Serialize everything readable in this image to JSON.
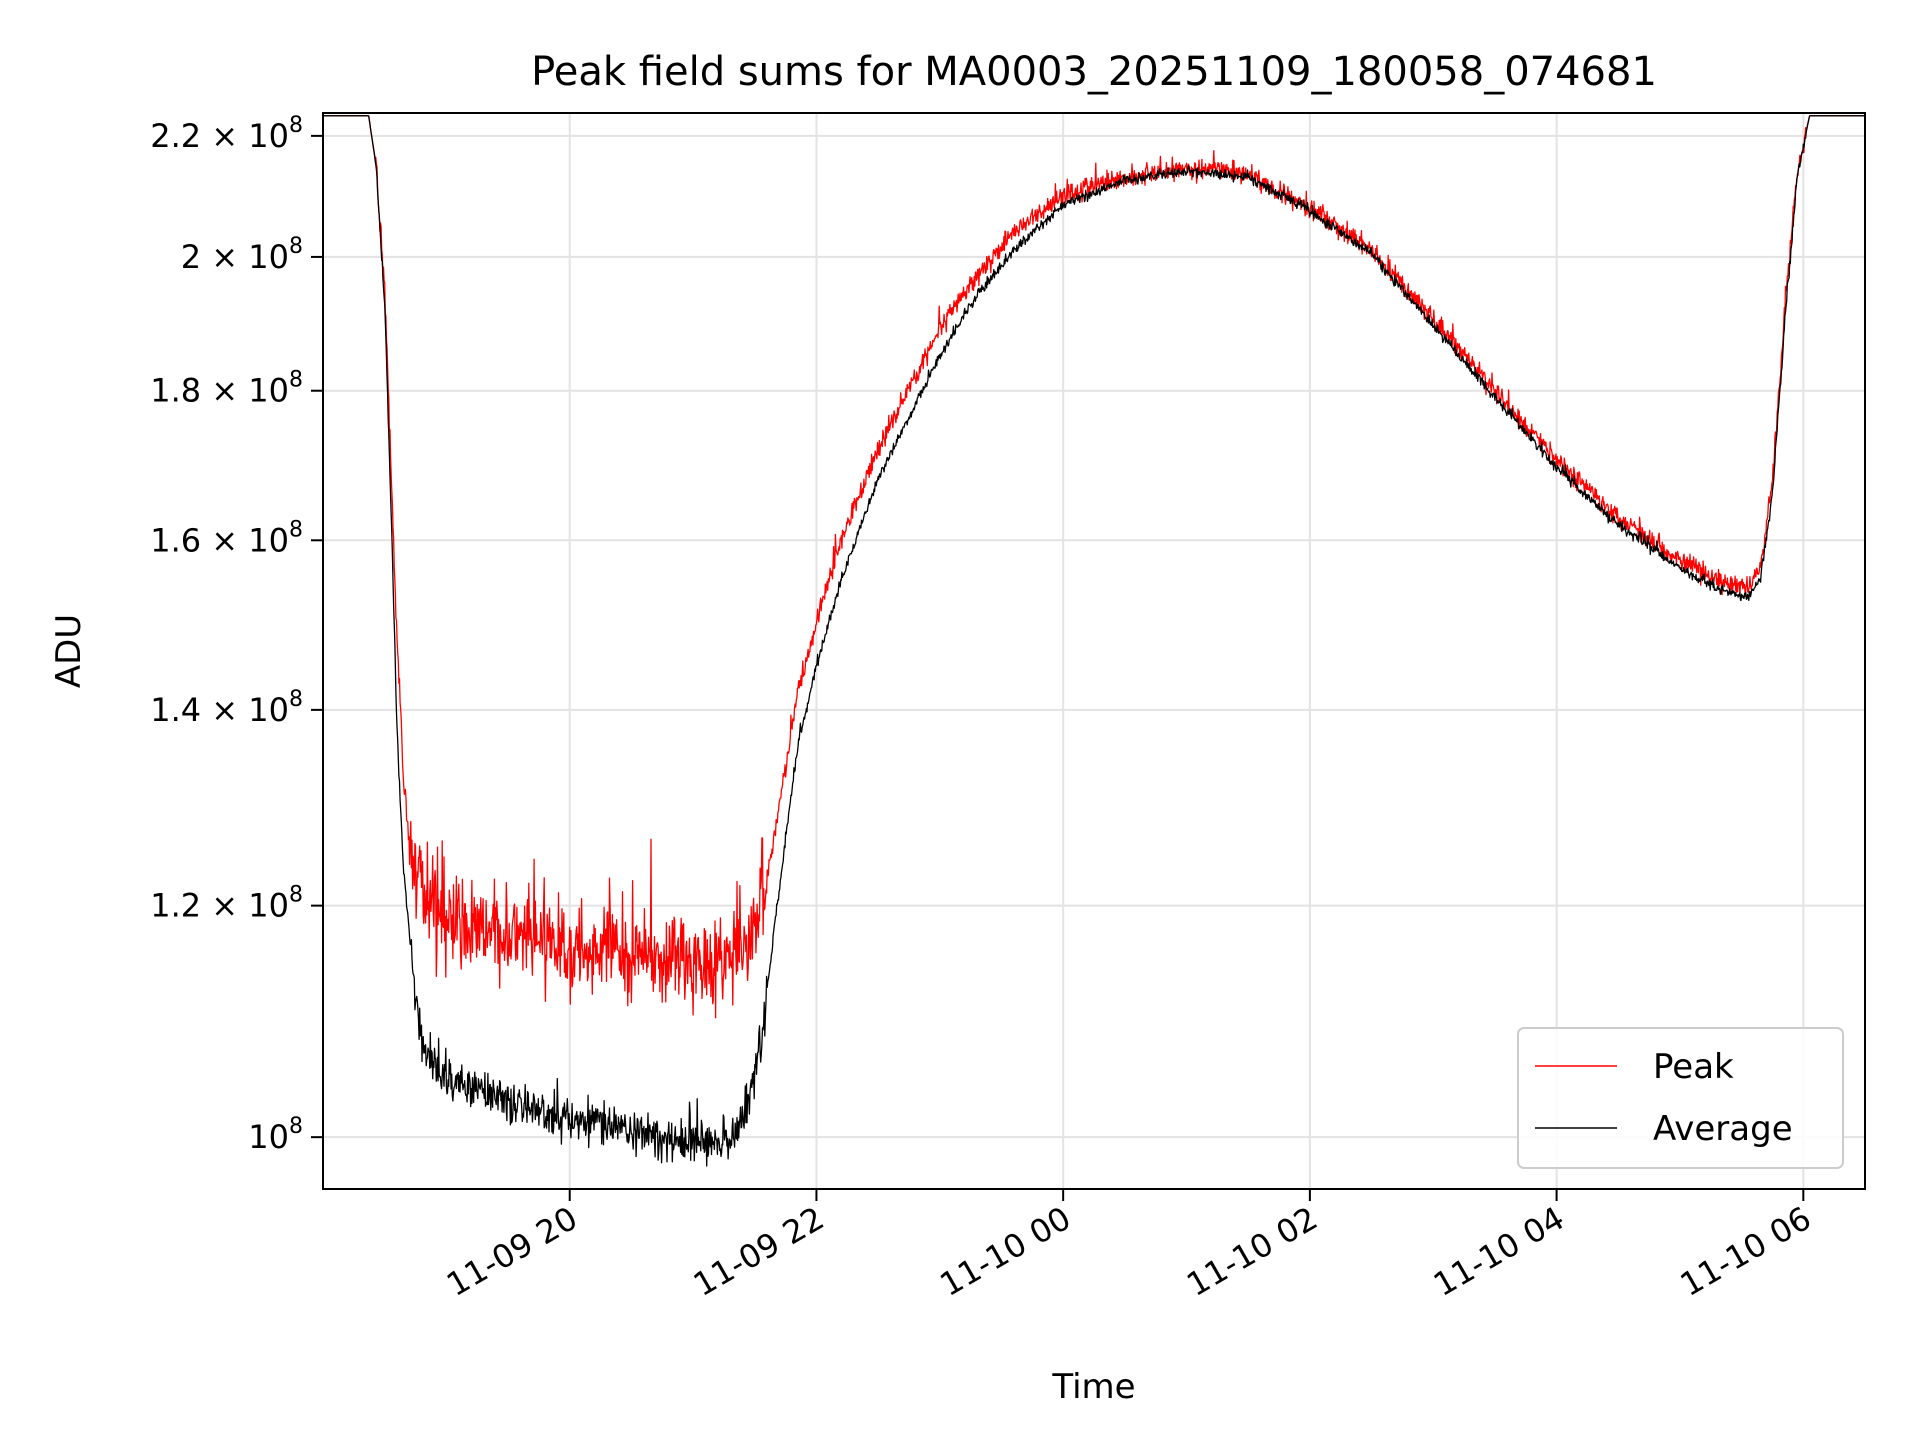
{
  "chart_data": {
    "type": "line",
    "title": "Peak field sums for MA0003_20251109_180058_074681",
    "xlabel": "Time",
    "ylabel": "ADU",
    "yscale": "log",
    "ylim": [
      96000000,
      224000000
    ],
    "xlim_hours": [
      18.0,
      30.5
    ],
    "grid": true,
    "legend_position": "lower-right",
    "x_ticks": [
      {
        "hours": 20,
        "label": "11-09 20"
      },
      {
        "hours": 22,
        "label": "11-09 22"
      },
      {
        "hours": 24,
        "label": "11-10 00"
      },
      {
        "hours": 26,
        "label": "11-10 02"
      },
      {
        "hours": 28,
        "label": "11-10 04"
      },
      {
        "hours": 30,
        "label": "11-10 06"
      }
    ],
    "y_ticks": [
      {
        "value": 100000000,
        "mantissa": "",
        "exponent": "8"
      },
      {
        "value": 120000000,
        "mantissa": "1.2",
        "exponent": "8"
      },
      {
        "value": 140000000,
        "mantissa": "1.4",
        "exponent": "8"
      },
      {
        "value": 160000000,
        "mantissa": "1.6",
        "exponent": "8"
      },
      {
        "value": 180000000,
        "mantissa": "1.8",
        "exponent": "8"
      },
      {
        "value": 200000000,
        "mantissa": "2",
        "exponent": "8"
      },
      {
        "value": 220000000,
        "mantissa": "2.2",
        "exponent": "8"
      }
    ],
    "times_label": "×",
    "tick_base": "10",
    "series": [
      {
        "name": "Peak",
        "color": "#ff0000",
        "noise_low_region": 0.035,
        "noise_default": 0.008,
        "points": [
          [
            18.0,
            223500000
          ],
          [
            18.37,
            223500000
          ],
          [
            18.43,
            215000000
          ],
          [
            18.5,
            195000000
          ],
          [
            18.55,
            170000000
          ],
          [
            18.6,
            148000000
          ],
          [
            18.65,
            133000000
          ],
          [
            18.7,
            126000000
          ],
          [
            18.8,
            122000000
          ],
          [
            19.0,
            118500000
          ],
          [
            19.5,
            117000000
          ],
          [
            20.0,
            116000000
          ],
          [
            20.5,
            115500000
          ],
          [
            21.0,
            115000000
          ],
          [
            21.3,
            115000000
          ],
          [
            21.45,
            116500000
          ],
          [
            21.55,
            120000000
          ],
          [
            21.65,
            126000000
          ],
          [
            21.75,
            134000000
          ],
          [
            21.85,
            142000000
          ],
          [
            22.0,
            150000000
          ],
          [
            22.2,
            160000000
          ],
          [
            22.5,
            172000000
          ],
          [
            22.8,
            182000000
          ],
          [
            23.0,
            189000000
          ],
          [
            23.3,
            197000000
          ],
          [
            23.6,
            204000000
          ],
          [
            24.0,
            210000000
          ],
          [
            24.5,
            213000000
          ],
          [
            25.0,
            214500000
          ],
          [
            25.5,
            213500000
          ],
          [
            26.0,
            208000000
          ],
          [
            26.5,
            201000000
          ],
          [
            27.0,
            190500000
          ],
          [
            27.5,
            180000000
          ],
          [
            28.0,
            170500000
          ],
          [
            28.5,
            163000000
          ],
          [
            29.0,
            157500000
          ],
          [
            29.3,
            155000000
          ],
          [
            29.55,
            154000000
          ],
          [
            29.65,
            156500000
          ],
          [
            29.75,
            168000000
          ],
          [
            29.85,
            192000000
          ],
          [
            29.95,
            214000000
          ],
          [
            30.05,
            223500000
          ],
          [
            30.5,
            223500000
          ]
        ]
      },
      {
        "name": "Average",
        "color": "#000000",
        "noise_low_region": 0.016,
        "noise_default": 0.004,
        "points": [
          [
            18.0,
            223500000
          ],
          [
            18.37,
            223500000
          ],
          [
            18.43,
            215000000
          ],
          [
            18.5,
            193000000
          ],
          [
            18.55,
            165000000
          ],
          [
            18.6,
            138000000
          ],
          [
            18.65,
            124000000
          ],
          [
            18.72,
            115000000
          ],
          [
            18.8,
            107500000
          ],
          [
            19.0,
            104500000
          ],
          [
            19.5,
            103000000
          ],
          [
            20.0,
            101500000
          ],
          [
            20.5,
            100500000
          ],
          [
            21.0,
            99500000
          ],
          [
            21.3,
            100000000
          ],
          [
            21.45,
            102500000
          ],
          [
            21.55,
            108000000
          ],
          [
            21.65,
            117000000
          ],
          [
            21.75,
            126500000
          ],
          [
            21.85,
            136000000
          ],
          [
            22.0,
            145000000
          ],
          [
            22.2,
            155000000
          ],
          [
            22.5,
            168000000
          ],
          [
            22.8,
            178000000
          ],
          [
            23.0,
            185000000
          ],
          [
            23.3,
            194000000
          ],
          [
            23.6,
            201000000
          ],
          [
            24.0,
            208500000
          ],
          [
            24.5,
            212500000
          ],
          [
            25.0,
            214000000
          ],
          [
            25.5,
            213000000
          ],
          [
            26.0,
            207500000
          ],
          [
            26.5,
            200500000
          ],
          [
            27.0,
            189500000
          ],
          [
            27.5,
            179000000
          ],
          [
            28.0,
            169500000
          ],
          [
            28.5,
            162000000
          ],
          [
            29.0,
            156500000
          ],
          [
            29.3,
            154000000
          ],
          [
            29.55,
            153000000
          ],
          [
            29.65,
            155000000
          ],
          [
            29.75,
            166000000
          ],
          [
            29.85,
            190000000
          ],
          [
            29.95,
            213000000
          ],
          [
            30.05,
            223500000
          ],
          [
            30.5,
            223500000
          ]
        ]
      }
    ]
  }
}
